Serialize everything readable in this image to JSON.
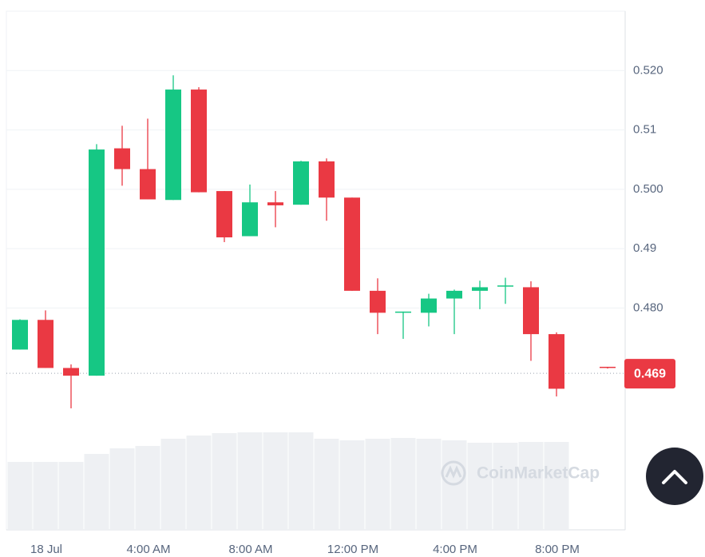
{
  "chart_data": {
    "type": "candlestick",
    "categories": [
      null,
      "18 Jul",
      null,
      null,
      null,
      "4:00 AM",
      null,
      null,
      null,
      "8:00 AM",
      null,
      null,
      null,
      "12:00 PM",
      null,
      null,
      null,
      "4:00 PM",
      null,
      null,
      null,
      "8:00 PM",
      null,
      null
    ],
    "open": [
      0.473,
      0.478,
      0.4699,
      0.4686,
      0.5069,
      0.5034,
      0.4982,
      0.5168,
      0.4997,
      0.4921,
      0.4978,
      0.4974,
      0.5047,
      0.4986,
      0.4829,
      0.4792,
      0.4792,
      0.4816,
      0.4829,
      0.4837,
      0.4835,
      0.4756,
      null,
      0.4701
    ],
    "high": [
      0.4781,
      0.4796,
      0.4705,
      0.5076,
      0.5107,
      0.5119,
      0.5192,
      0.5172,
      0.4997,
      0.5008,
      0.4997,
      0.5048,
      0.5052,
      0.4986,
      0.485,
      0.4794,
      0.4824,
      0.4831,
      0.4846,
      0.4851,
      0.4845,
      0.4759,
      null,
      0.4701
    ],
    "low": [
      0.473,
      0.4699,
      0.4631,
      0.4686,
      0.5006,
      0.4983,
      0.4982,
      0.4995,
      0.4911,
      0.4921,
      0.4936,
      0.4974,
      0.4947,
      0.4829,
      0.4756,
      0.4748,
      0.4769,
      0.4756,
      0.4798,
      0.4807,
      0.4711,
      0.4651,
      null,
      0.4698
    ],
    "close": [
      0.478,
      0.4699,
      0.4686,
      0.5067,
      0.5034,
      0.4983,
      0.5168,
      0.4995,
      0.4919,
      0.4978,
      0.4973,
      0.5047,
      0.4986,
      0.4829,
      0.4792,
      0.4794,
      0.4816,
      0.4829,
      0.4835,
      0.4838,
      0.4756,
      0.4664,
      null,
      0.4699
    ],
    "volume": [
      85,
      85,
      85,
      95,
      102,
      105,
      114,
      118,
      121,
      122,
      122,
      122,
      114,
      112,
      114,
      115,
      114,
      112,
      109,
      109,
      110,
      110,
      null,
      null
    ],
    "up_color": "#16c784",
    "down_color": "#ea3943",
    "volume_color": "#eef0f3",
    "ylim": [
      0.46,
      0.53
    ],
    "yticks": [
      {
        "value": 0.48,
        "label": "0.480"
      },
      0.49,
      {
        "value": 0.5,
        "label": "0.500"
      },
      0.51,
      {
        "value": 0.52,
        "label": "0.520"
      }
    ],
    "grid": true,
    "last_price": 0.469,
    "watermark": "CoinMarketCap"
  }
}
